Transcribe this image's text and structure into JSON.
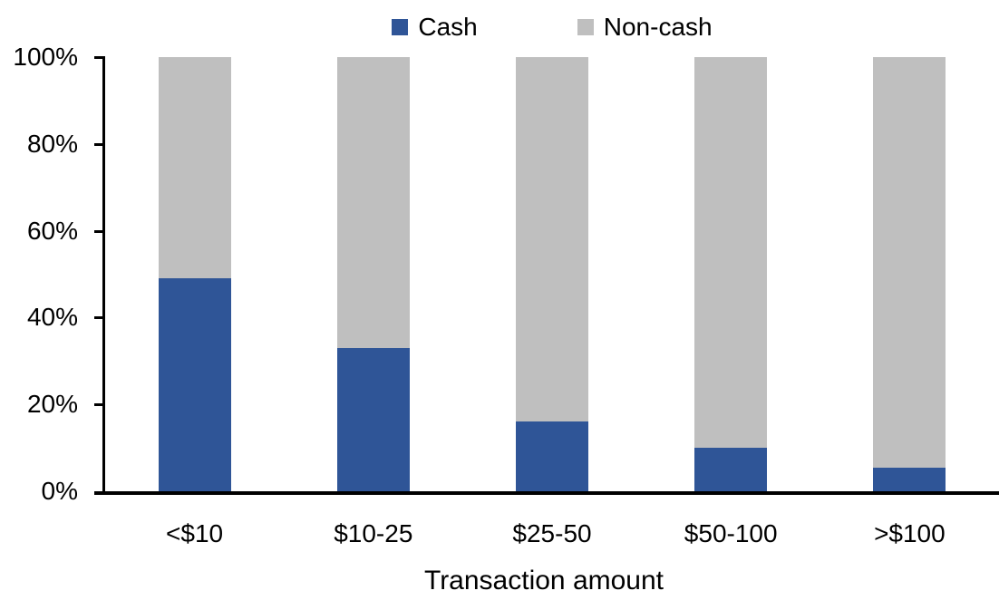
{
  "chart_data": {
    "type": "bar",
    "variant": "stacked-100-percent",
    "title": "",
    "xlabel": "Transaction amount",
    "ylabel": "",
    "categories": [
      "<$10",
      "$10-25",
      "$25-50",
      "$50-100",
      ">$100"
    ],
    "series": [
      {
        "name": "Cash",
        "color": "#2F5597",
        "values": [
          49,
          33,
          16,
          10,
          5.5
        ]
      },
      {
        "name": "Non-cash",
        "color": "#BFBFBF",
        "values": [
          51,
          67,
          84,
          90,
          94.5
        ]
      }
    ],
    "ylim": [
      0,
      100
    ],
    "yticks": [
      0,
      20,
      40,
      60,
      80,
      100
    ],
    "ytick_labels": [
      "0%",
      "20%",
      "40%",
      "60%",
      "80%",
      "100%"
    ],
    "legend_position": "top-center",
    "grid": false,
    "axis_color": "#000000",
    "text_color": "#000000",
    "background_color": "#FFFFFF"
  }
}
